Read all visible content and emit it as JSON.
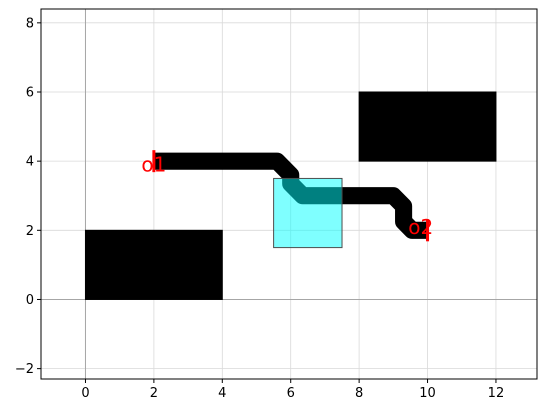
{
  "chart_data": {
    "type": "scatter",
    "title": "",
    "xlabel": "",
    "ylabel": "",
    "xlim": [
      -1.3,
      13.2
    ],
    "ylim": [
      -2.3,
      8.4
    ],
    "x_ticks": [
      0,
      2,
      4,
      6,
      8,
      10,
      12
    ],
    "y_ticks": [
      -2,
      0,
      2,
      4,
      6,
      8
    ],
    "grid": true,
    "legend": "none",
    "colors": {
      "block": "#000000",
      "highlight": "#00ffff",
      "highlight_edge": "#4d4d4d",
      "route": "#000000",
      "port": "#ff0000",
      "grid": "#d9d9d9",
      "axis_zero": "#a6a6a6"
    },
    "rectangles": [
      {
        "name": "block-bottom-left",
        "x0": 0,
        "y0": 0,
        "x1": 4,
        "y1": 2,
        "color": "#000000"
      },
      {
        "name": "block-top-right",
        "x0": 8,
        "y0": 4,
        "x1": 12,
        "y1": 6,
        "color": "#000000"
      },
      {
        "name": "highlight-box",
        "x0": 5.5,
        "y0": 1.5,
        "x1": 7.5,
        "y1": 3.5,
        "color": "#00ffff",
        "opacity": 0.5
      }
    ],
    "route": {
      "name": "waveguide-path",
      "points": [
        [
          2,
          4
        ],
        [
          5.6,
          4
        ],
        [
          6.0,
          3.6
        ],
        [
          6.0,
          3.35
        ],
        [
          6.35,
          3.0
        ],
        [
          9.0,
          3.0
        ],
        [
          9.3,
          2.7
        ],
        [
          9.3,
          2.25
        ],
        [
          9.55,
          2.0
        ],
        [
          10.0,
          2.0
        ]
      ],
      "width": 0.5
    },
    "ports": [
      {
        "label": "o1",
        "x": 2.0,
        "y": 3.9,
        "marker_x": 2.0,
        "marker_y": 4.0
      },
      {
        "label": "o2",
        "x": 9.8,
        "y": 2.1,
        "marker_x": 10.0,
        "marker_y": 2.0
      }
    ]
  }
}
